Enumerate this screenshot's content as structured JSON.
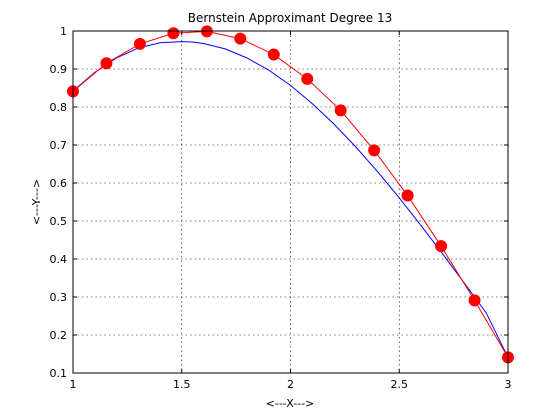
{
  "chart_data": {
    "type": "line",
    "title": "Bernstein Approximant Degree 13",
    "xlabel": "<---X--->",
    "ylabel": "<---Y--->",
    "xlim": [
      1,
      3
    ],
    "ylim": [
      0.1,
      1.0
    ],
    "xticks": [
      1,
      1.5,
      2,
      2.5,
      3
    ],
    "xtick_labels": [
      "1",
      "1.5",
      "2",
      "2.5",
      "3"
    ],
    "yticks": [
      0.1,
      0.2,
      0.3,
      0.4,
      0.5,
      0.6,
      0.7,
      0.8,
      0.9,
      1.0
    ],
    "ytick_labels": [
      "0.1",
      "0.2",
      "0.3",
      "0.4",
      "0.5",
      "0.6",
      "0.7",
      "0.8",
      "0.9",
      "1"
    ],
    "grid": true,
    "series": [
      {
        "color": "#0000ff",
        "style": "line",
        "x": [
          1.0,
          1.1,
          1.2,
          1.3,
          1.4,
          1.5,
          1.55,
          1.6,
          1.7,
          1.8,
          1.9,
          2.0,
          2.1,
          2.2,
          2.3,
          2.4,
          2.5,
          2.6,
          2.7,
          2.8,
          2.9,
          3.0
        ],
        "y": [
          0.842,
          0.891,
          0.929,
          0.955,
          0.969,
          0.972,
          0.971,
          0.967,
          0.953,
          0.929,
          0.897,
          0.857,
          0.809,
          0.755,
          0.695,
          0.63,
          0.561,
          0.488,
          0.413,
          0.336,
          0.258,
          0.141
        ]
      },
      {
        "color": "#ff0000",
        "style": "line-markers",
        "x": [
          1.0,
          1.1538,
          1.3077,
          1.4615,
          1.6154,
          1.7692,
          1.9231,
          2.0769,
          2.2308,
          2.3846,
          2.5385,
          2.6923,
          2.8462,
          3.0
        ],
        "y": [
          0.841,
          0.915,
          0.966,
          0.994,
          0.999,
          0.98,
          0.938,
          0.874,
          0.791,
          0.686,
          0.567,
          0.434,
          0.291,
          0.141
        ]
      }
    ]
  }
}
